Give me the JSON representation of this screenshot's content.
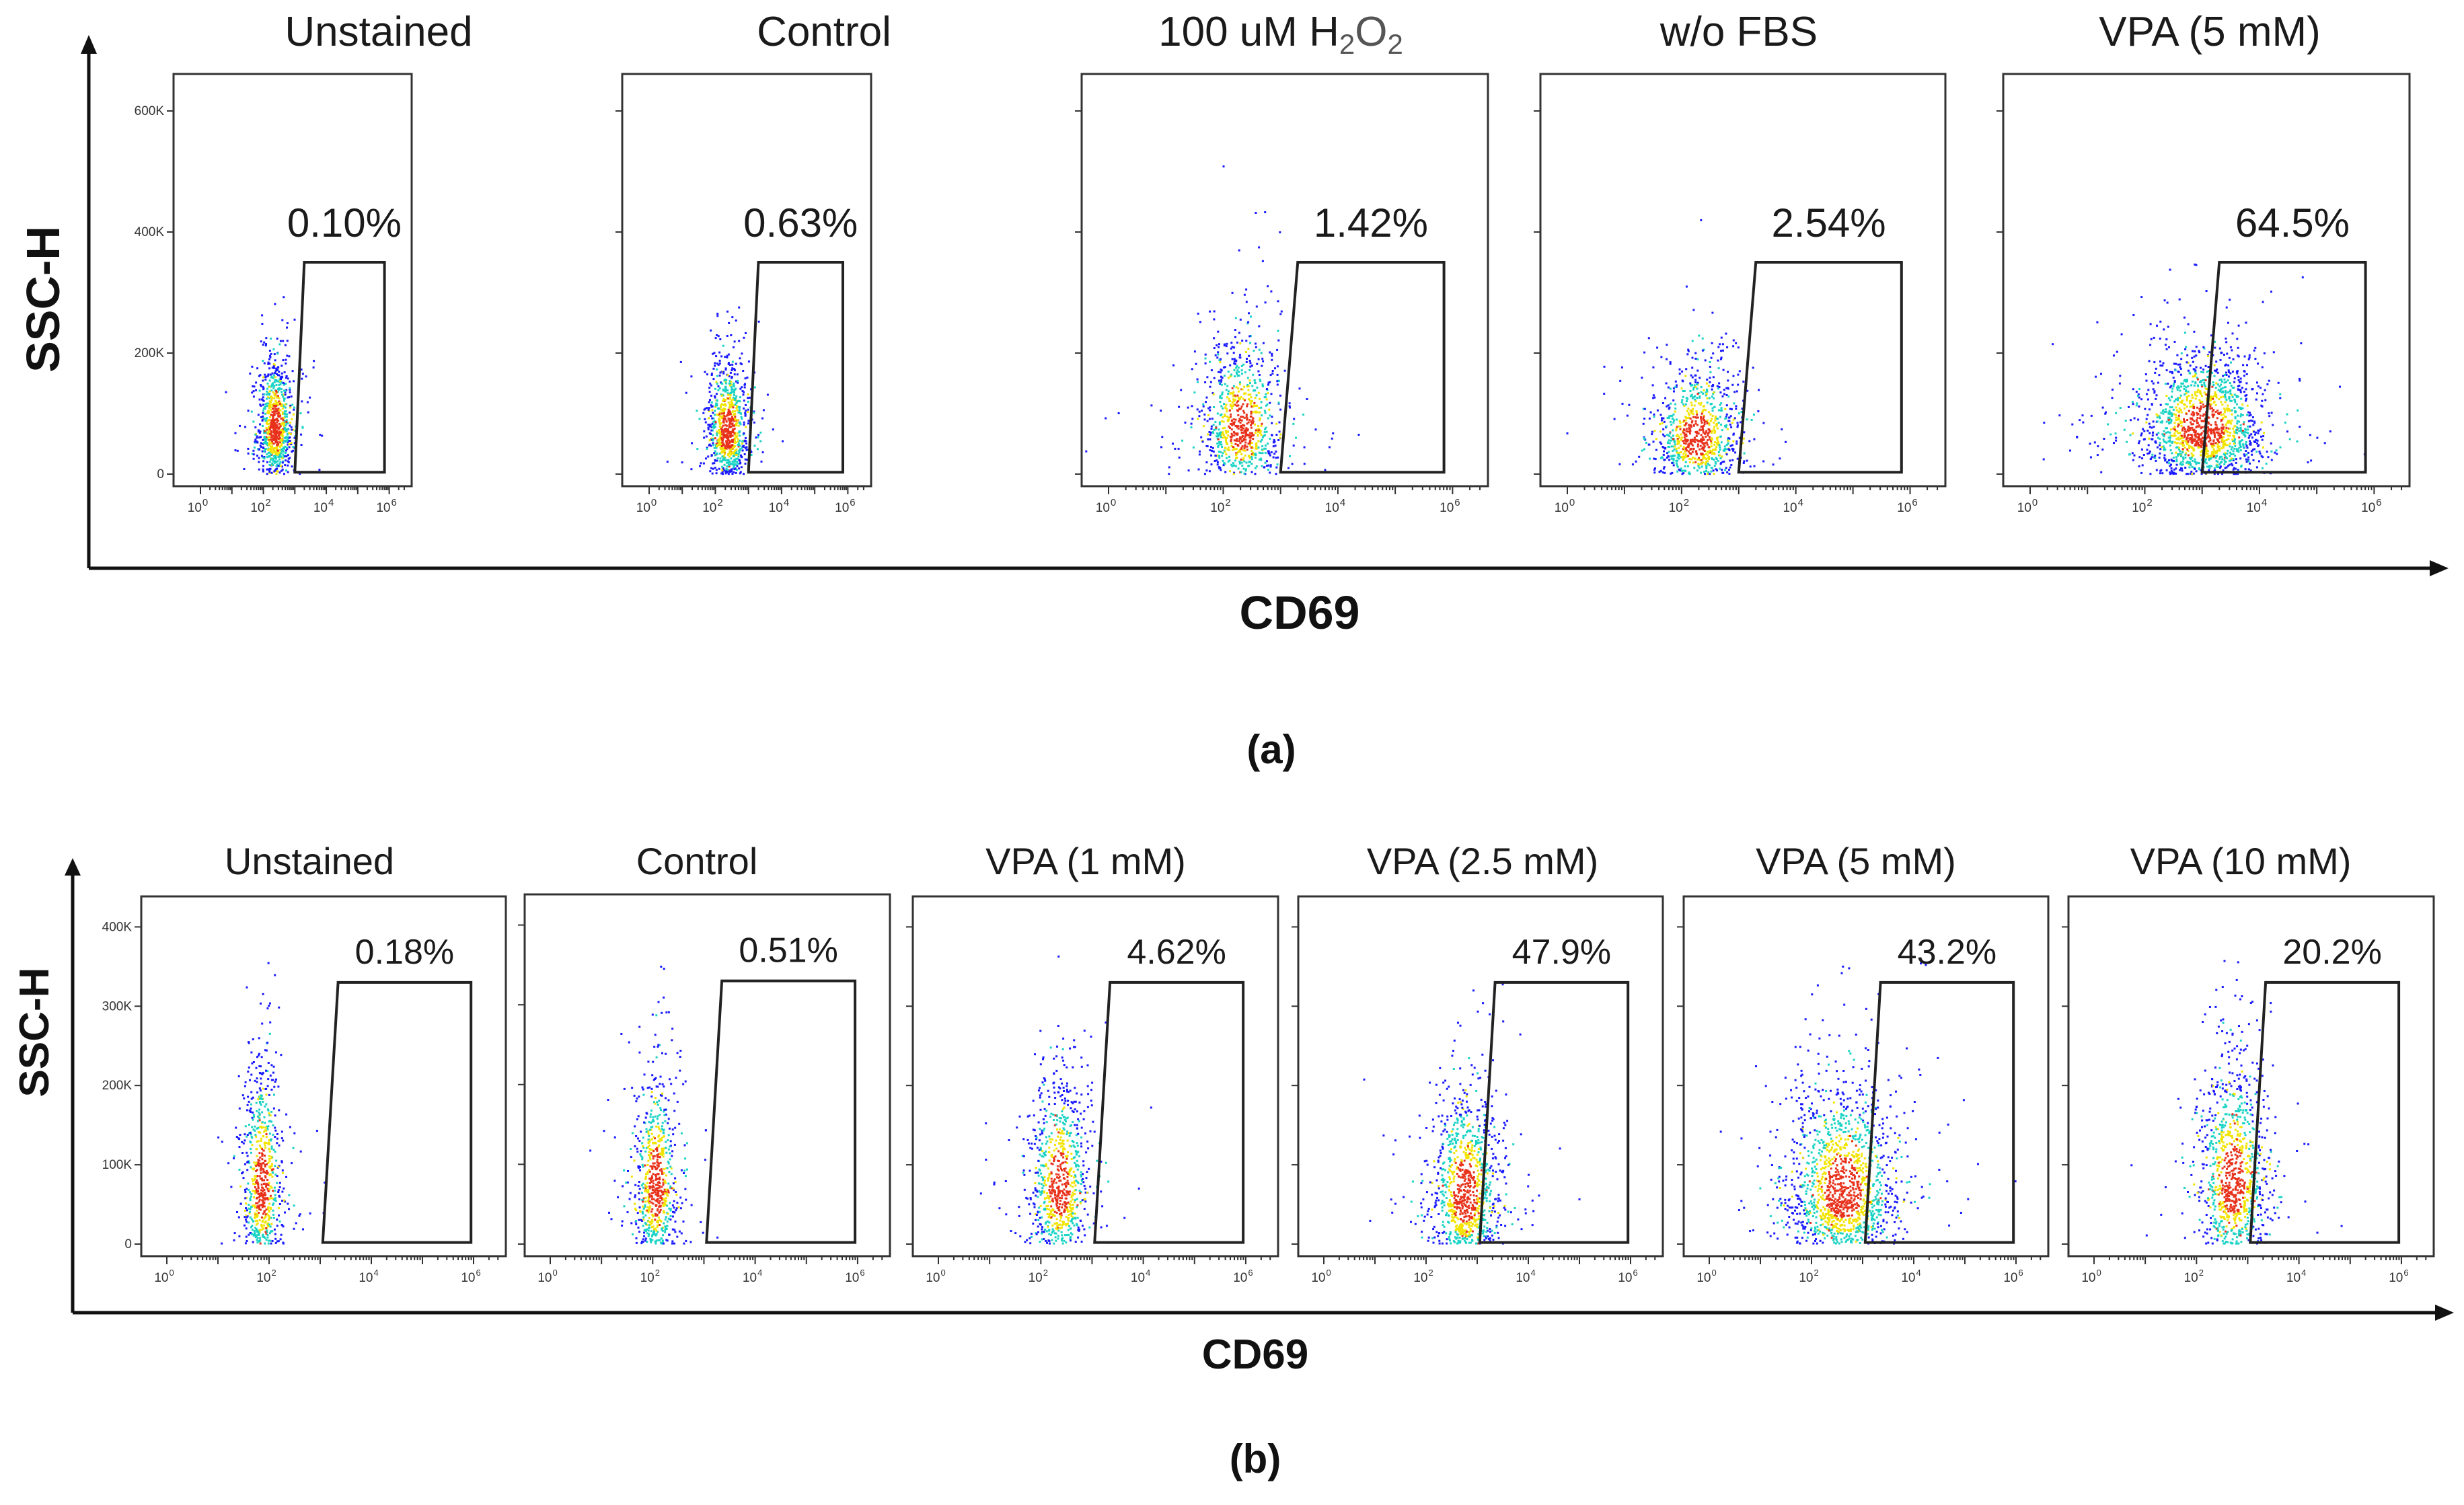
{
  "chart_data": [
    {
      "type": "scatter",
      "label": "(a)",
      "ylabel": "SSC-H",
      "xlabel": "CD69",
      "x_scale": "log",
      "x_ticks": [
        "10",
        "10",
        "10",
        "10"
      ],
      "x_tick_exponents": [
        "0",
        "2",
        "4",
        "6"
      ],
      "x_tick_values": [
        1,
        100,
        10000,
        1000000
      ],
      "y_ticks": [
        "0",
        "200K",
        "400K",
        "600K"
      ],
      "y_tick_values": [
        0,
        200000,
        400000,
        600000
      ],
      "ylim": [
        0,
        650000
      ],
      "panels": [
        {
          "title": "Unstained",
          "gate_percent": "0.10%"
        },
        {
          "title": "Control",
          "gate_percent": "0.63%"
        },
        {
          "title": "100 uM H",
          "title_sub1": "2",
          "title_mid": "O",
          "title_sub2": "2",
          "gate_percent": "1.42%"
        },
        {
          "title": "w/o FBS",
          "gate_percent": "2.54%"
        },
        {
          "title": "VPA  (5 mM)",
          "gate_percent": "64.5%"
        }
      ]
    },
    {
      "type": "scatter",
      "label": "(b)",
      "ylabel": "SSC-H",
      "xlabel": "CD69",
      "x_scale": "log",
      "x_ticks": [
        "10",
        "10",
        "10",
        "10"
      ],
      "x_tick_exponents": [
        "0",
        "2",
        "4",
        "6"
      ],
      "x_tick_values": [
        1,
        100,
        10000,
        1000000
      ],
      "y_ticks": [
        "0",
        "100K",
        "200K",
        "300K",
        "400K"
      ],
      "y_tick_values": [
        0,
        100000,
        200000,
        300000,
        400000
      ],
      "ylim": [
        0,
        430000
      ],
      "panels": [
        {
          "title": "Unstained",
          "gate_percent": "0.18%"
        },
        {
          "title": "Control",
          "gate_percent": "0.51%"
        },
        {
          "title": "VPA  (1 mM)",
          "gate_percent": "4.62%"
        },
        {
          "title": "VPA  (2.5 mM)",
          "gate_percent": "47.9%"
        },
        {
          "title": "VPA  (5 mM)",
          "gate_percent": "43.2%"
        },
        {
          "title": "VPA  (10 mM)",
          "gate_percent": "20.2%"
        }
      ]
    }
  ],
  "colors": {
    "density_low": "#1a1aff",
    "density_mid": "#19d3c5",
    "density_high": "#f2e400",
    "density_peak": "#e8311b",
    "axis": "#111111"
  }
}
